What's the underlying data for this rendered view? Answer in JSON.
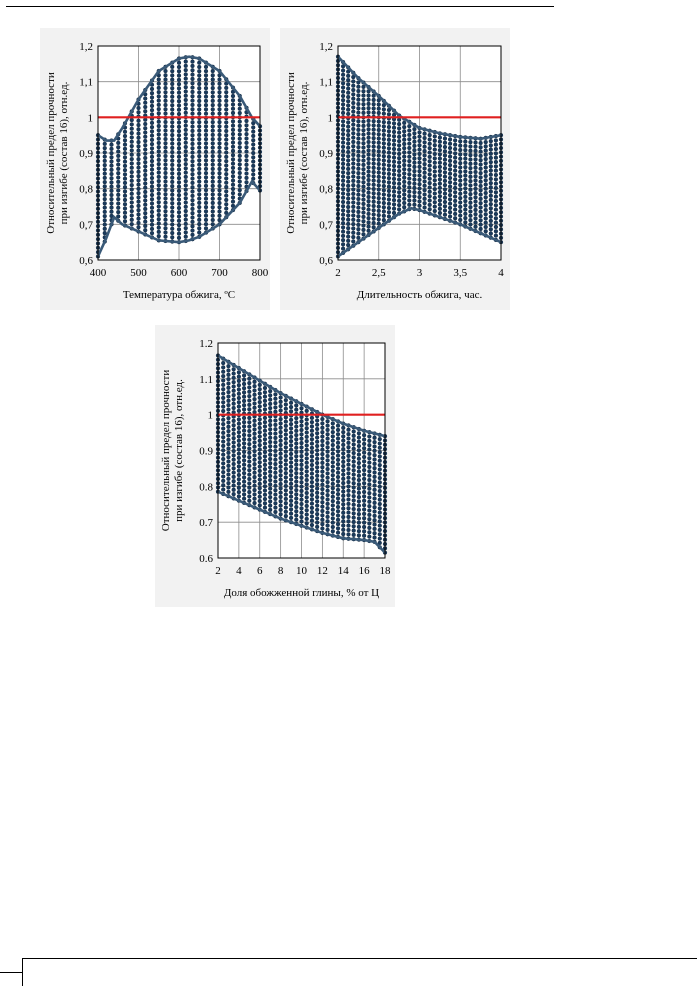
{
  "chart_data": [
    {
      "type": "scatter",
      "xlabel": "Температура обжига, ºС",
      "ylabel_line1": "Относительный предел прочности",
      "ylabel_line2": "при изгибе (состав 16), отн.ед.",
      "xlim": [
        400,
        800
      ],
      "ylim": [
        0.6,
        1.2
      ],
      "xticks": [
        "400",
        "500",
        "600",
        "700",
        "800"
      ],
      "yticks": [
        "0,6",
        "0,7",
        "0,8",
        "0,9",
        "1",
        "1,1",
        "1,2"
      ],
      "reference_line_y": 1.0,
      "reference_color": "#e02020",
      "point_color": "#1a3a5c",
      "upper_envelope": [
        [
          400,
          0.95
        ],
        [
          420,
          0.935
        ],
        [
          440,
          0.935
        ],
        [
          460,
          0.97
        ],
        [
          500,
          1.05
        ],
        [
          550,
          1.13
        ],
        [
          600,
          1.165
        ],
        [
          625,
          1.17
        ],
        [
          650,
          1.165
        ],
        [
          700,
          1.13
        ],
        [
          750,
          1.06
        ],
        [
          780,
          1.0
        ],
        [
          800,
          0.975
        ]
      ],
      "lower_envelope": [
        [
          400,
          0.61
        ],
        [
          420,
          0.66
        ],
        [
          440,
          0.72
        ],
        [
          460,
          0.7
        ],
        [
          500,
          0.68
        ],
        [
          550,
          0.655
        ],
        [
          600,
          0.65
        ],
        [
          625,
          0.655
        ],
        [
          650,
          0.665
        ],
        [
          700,
          0.7
        ],
        [
          750,
          0.76
        ],
        [
          780,
          0.82
        ],
        [
          800,
          0.795
        ]
      ]
    },
    {
      "type": "scatter",
      "xlabel": "Длительность обжига, час.",
      "ylabel_line1": "Относительный предел прочности",
      "ylabel_line2": "при изгибе (состав 16), отн.ед.",
      "xlim": [
        2,
        4
      ],
      "ylim": [
        0.6,
        1.2
      ],
      "xticks": [
        "2",
        "2,5",
        "3",
        "3,5",
        "4"
      ],
      "yticks": [
        "0,6",
        "0,7",
        "0,8",
        "0,9",
        "1",
        "1,1",
        "1,2"
      ],
      "reference_line_y": 1.0,
      "reference_color": "#e02020",
      "point_color": "#1a3a5c",
      "upper_envelope": [
        [
          2,
          1.17
        ],
        [
          2.25,
          1.11
        ],
        [
          2.5,
          1.06
        ],
        [
          2.75,
          1.005
        ],
        [
          3,
          0.97
        ],
        [
          3.25,
          0.955
        ],
        [
          3.5,
          0.945
        ],
        [
          3.75,
          0.94
        ],
        [
          4,
          0.95
        ]
      ],
      "lower_envelope": [
        [
          2,
          0.61
        ],
        [
          2.25,
          0.65
        ],
        [
          2.5,
          0.69
        ],
        [
          2.75,
          0.73
        ],
        [
          2.9,
          0.745
        ],
        [
          3,
          0.74
        ],
        [
          3.25,
          0.72
        ],
        [
          3.5,
          0.7
        ],
        [
          3.75,
          0.675
        ],
        [
          4,
          0.65
        ]
      ]
    },
    {
      "type": "scatter",
      "xlabel": "Доля обожженной глины, % от Ц",
      "ylabel_line1": "Относительный предел прочности",
      "ylabel_line2": "при изгибе (состав 16), отн.ед.",
      "xlim": [
        2,
        18
      ],
      "ylim": [
        0.6,
        1.2
      ],
      "xticks": [
        "2",
        "4",
        "6",
        "8",
        "10",
        "12",
        "14",
        "16",
        "18"
      ],
      "yticks": [
        "0.6",
        "0.7",
        "0.8",
        "0.9",
        "1",
        "1.1",
        "1.2"
      ],
      "reference_line_y": 1.0,
      "reference_color": "#e02020",
      "point_color": "#1a3a5c",
      "upper_envelope": [
        [
          2,
          1.165
        ],
        [
          4,
          1.13
        ],
        [
          6,
          1.095
        ],
        [
          8,
          1.06
        ],
        [
          10,
          1.03
        ],
        [
          12,
          1.0
        ],
        [
          14,
          0.975
        ],
        [
          16,
          0.955
        ],
        [
          18,
          0.94
        ]
      ],
      "lower_envelope": [
        [
          2,
          0.785
        ],
        [
          4,
          0.76
        ],
        [
          6,
          0.735
        ],
        [
          8,
          0.71
        ],
        [
          10,
          0.69
        ],
        [
          12,
          0.67
        ],
        [
          14,
          0.655
        ],
        [
          16,
          0.65
        ],
        [
          17,
          0.645
        ],
        [
          18,
          0.615
        ]
      ]
    }
  ]
}
